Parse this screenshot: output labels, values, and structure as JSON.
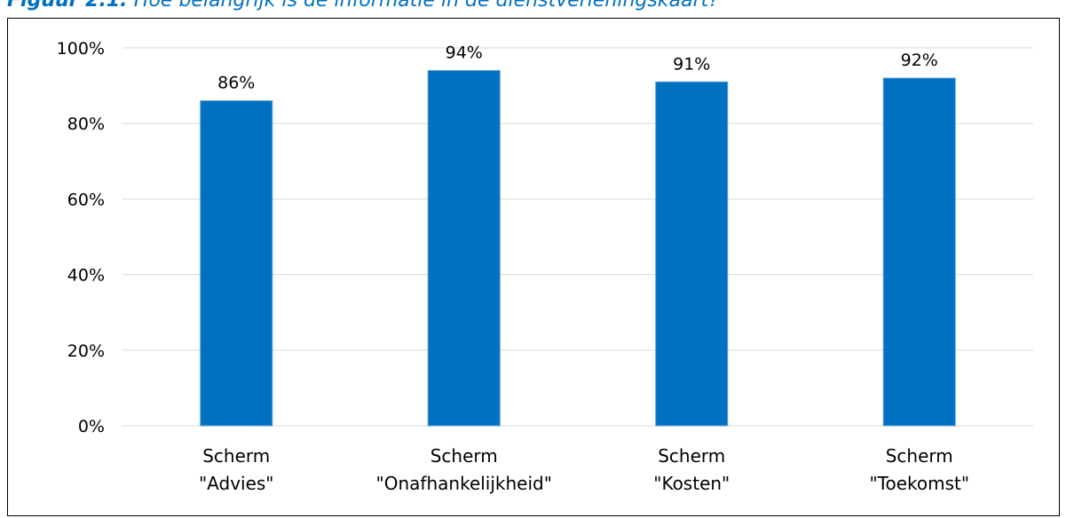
{
  "caption": {
    "label": "Figuur 2.1:",
    "text": "Hoe belangrijk is de informatie in de dienstverleningskaart?"
  },
  "colors": {
    "bar": "#0070c0",
    "bar_edge": "#5b9bd5",
    "grid": "#d9d9d9",
    "caption": "#0070c0"
  },
  "chart_data": {
    "type": "bar",
    "title": "",
    "xlabel": "",
    "ylabel": "",
    "categories": [
      [
        "Scherm",
        "\"Advies\""
      ],
      [
        "Scherm",
        "\"Onafhankelijkheid\""
      ],
      [
        "Scherm",
        "\"Kosten\""
      ],
      [
        "Scherm",
        "\"Toekomst\""
      ]
    ],
    "values": [
      86,
      94,
      91,
      92
    ],
    "value_labels": [
      "86%",
      "94%",
      "91%",
      "92%"
    ],
    "ylim": [
      0,
      100
    ],
    "yticks": [
      0,
      20,
      40,
      60,
      80,
      100
    ],
    "ytick_labels": [
      "0%",
      "20%",
      "40%",
      "60%",
      "80%",
      "100%"
    ],
    "grid": true,
    "legend": "none"
  }
}
